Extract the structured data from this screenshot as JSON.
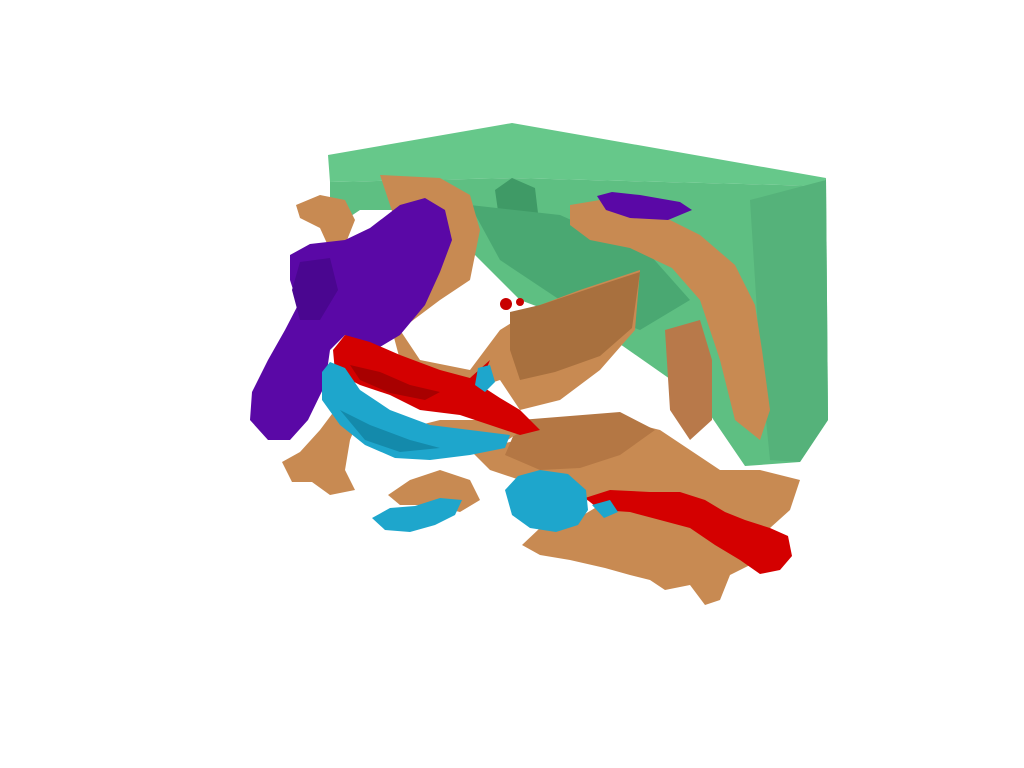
{
  "scene": {
    "description_free": true,
    "colors": {
      "background": "#ffffff",
      "block_top": "#62c486",
      "block_front": "#5cbd80",
      "block_side": "#53b078",
      "block_inner": "#3f9a66",
      "tan": "#c88a52",
      "tan_shade": "#a8703e",
      "tan_light": "#d79a60",
      "purple": "#5a08a6",
      "purple_shade": "#4a0690",
      "red": "#d40000",
      "red_shade": "#a80000",
      "cyan": "#1ea6cc",
      "cyan_shade": "#148aab"
    },
    "objects": [
      {
        "name": "green-block",
        "color": "block_front"
      },
      {
        "name": "tan-structure",
        "color": "tan"
      },
      {
        "name": "purple-structure",
        "color": "purple"
      },
      {
        "name": "red-structure",
        "color": "red"
      },
      {
        "name": "cyan-structure",
        "color": "cyan"
      }
    ]
  }
}
